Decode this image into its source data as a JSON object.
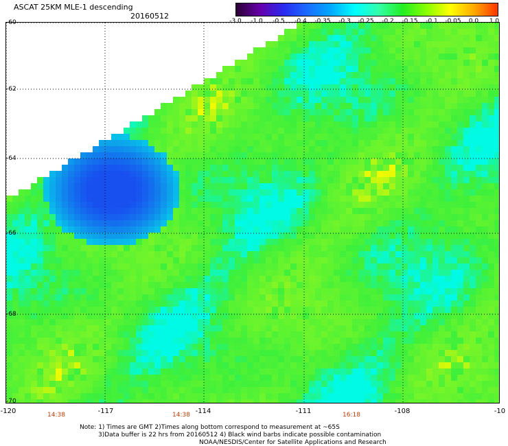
{
  "header": {
    "title": "ASCAT 25KM MLE-1 descending",
    "date": "20160512"
  },
  "colorbar": {
    "labels": [
      "-3.0",
      "-1.0",
      "-0.5",
      "-0.4",
      "-0.35",
      "-0.3",
      "-0.25",
      "-0.2",
      "-0.15",
      "-0.1",
      "-0.05",
      "0.0",
      "1.0"
    ],
    "colors": [
      "#2a0033",
      "#6600aa",
      "#2a2af0",
      "#1a6cff",
      "#00aaff",
      "#00ffff",
      "#33ffaa",
      "#22ee22",
      "#88ff00",
      "#ffff00",
      "#ffaa00",
      "#ff3300"
    ]
  },
  "map": {
    "lat_labels": [
      "-60",
      "-62",
      "-64",
      "-66",
      "-68",
      "-70"
    ],
    "lon_labels": [
      "-120",
      "-117",
      "-114",
      "-111",
      "-108",
      "-10"
    ],
    "time_labels": [
      "14:38",
      "14:38",
      "16:18"
    ]
  },
  "notes": {
    "line1": "Note: 1) Times are GMT 2)Times along bottom correspond to measurement at ~65S",
    "line2": "3)Data buffer is 22 hrs from 20160512 4) Black wind barbs indicate possible contamination",
    "line3": "NOAA/NESDIS/Center for Satellite Applications and Research"
  }
}
